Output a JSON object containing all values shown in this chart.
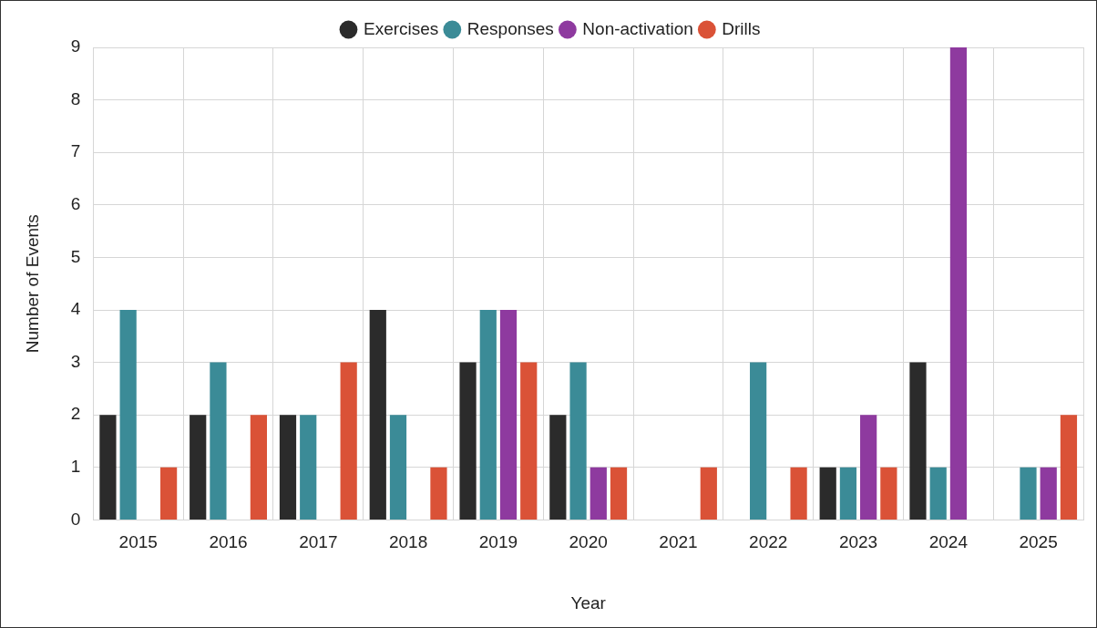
{
  "chart_data": {
    "type": "bar",
    "xlabel": "Year",
    "ylabel": "Number of Events",
    "categories": [
      "2015",
      "2016",
      "2017",
      "2018",
      "2019",
      "2020",
      "2021",
      "2022",
      "2023",
      "2024",
      "2025"
    ],
    "series": [
      {
        "name": "Exercises",
        "color": "#2b2b2b",
        "values": [
          2,
          2,
          2,
          4,
          3,
          2,
          0,
          0,
          1,
          3,
          0
        ]
      },
      {
        "name": "Responses",
        "color": "#3b8b97",
        "values": [
          4,
          3,
          2,
          2,
          4,
          3,
          0,
          3,
          1,
          1,
          1
        ]
      },
      {
        "name": "Non-activation",
        "color": "#8e3a9f",
        "values": [
          0,
          0,
          0,
          0,
          4,
          1,
          0,
          0,
          2,
          9,
          1
        ]
      },
      {
        "name": "Drills",
        "color": "#da5237",
        "values": [
          1,
          2,
          3,
          1,
          3,
          1,
          1,
          1,
          1,
          0,
          2
        ]
      }
    ],
    "ylim": [
      0,
      9
    ],
    "yticks": [
      0,
      1,
      2,
      3,
      4,
      5,
      6,
      7,
      8,
      9
    ],
    "grid": true,
    "legend": "top"
  }
}
